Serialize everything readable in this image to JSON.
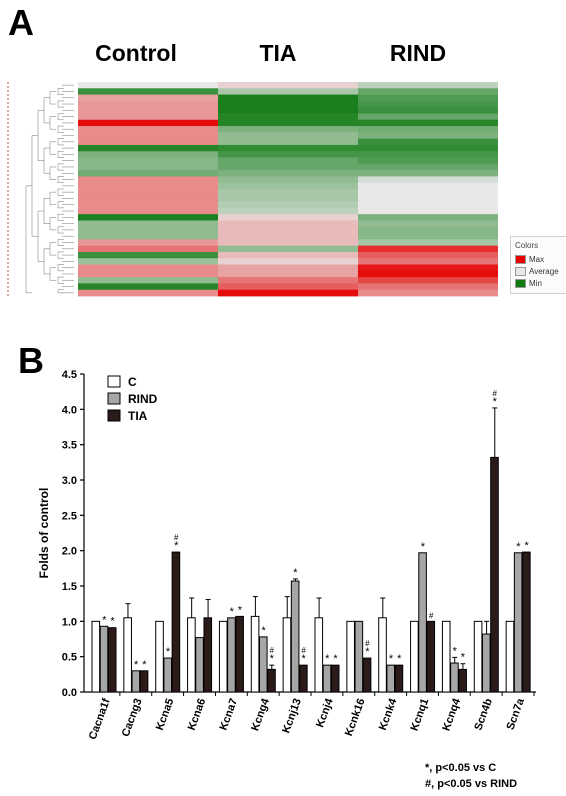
{
  "panels": {
    "a": "A",
    "b": "B"
  },
  "heatmap": {
    "groups": [
      "Control",
      "TIA",
      "RIND"
    ],
    "legend": {
      "title": "Colors",
      "items": [
        {
          "label": "Max",
          "color": "#e60000"
        },
        {
          "label": "Average",
          "color": "#e8e8e8"
        },
        {
          "label": "Min",
          "color": "#0f7a12"
        }
      ]
    }
  },
  "chart_data": [
    {
      "type": "heatmap",
      "columns": [
        "Control",
        "TIA",
        "RIND"
      ],
      "palette": {
        "max": "#e60000",
        "average": "#e8e8e8",
        "min": "#0f7a12"
      },
      "rows": [
        {
          "values": [
            0,
            0.1,
            -0.2
          ]
        },
        {
          "values": [
            -0.8,
            -0.3,
            -0.6
          ]
        },
        {
          "values": [
            0.3,
            -0.95,
            -0.7
          ]
        },
        {
          "values": [
            0.35,
            -0.95,
            -0.75
          ]
        },
        {
          "values": [
            0.35,
            -0.95,
            -0.8
          ]
        },
        {
          "values": [
            0.35,
            -0.9,
            -0.6
          ]
        },
        {
          "values": [
            0.95,
            -0.9,
            -0.9
          ]
        },
        {
          "values": [
            0.4,
            -0.5,
            -0.55
          ]
        },
        {
          "values": [
            0.4,
            -0.4,
            -0.5
          ]
        },
        {
          "values": [
            0.4,
            -0.4,
            -0.8
          ]
        },
        {
          "values": [
            -0.9,
            -0.85,
            -0.85
          ]
        },
        {
          "values": [
            -0.5,
            -0.75,
            -0.75
          ]
        },
        {
          "values": [
            -0.45,
            -0.6,
            -0.7
          ]
        },
        {
          "values": [
            -0.45,
            -0.6,
            -0.6
          ]
        },
        {
          "values": [
            -0.55,
            -0.5,
            -0.5
          ]
        },
        {
          "values": [
            0.4,
            -0.4,
            -0.1
          ]
        },
        {
          "values": [
            0.4,
            -0.35,
            0
          ]
        },
        {
          "values": [
            0.4,
            -0.3,
            0
          ]
        },
        {
          "values": [
            0.4,
            -0.3,
            0
          ]
        },
        {
          "values": [
            0.4,
            -0.25,
            0
          ]
        },
        {
          "values": [
            0.4,
            -0.2,
            0
          ]
        },
        {
          "values": [
            -0.95,
            0.1,
            -0.5
          ]
        },
        {
          "values": [
            -0.4,
            0.2,
            -0.4
          ]
        },
        {
          "values": [
            -0.4,
            0.2,
            -0.45
          ]
        },
        {
          "values": [
            -0.4,
            0.2,
            -0.45
          ]
        },
        {
          "values": [
            0.35,
            0.2,
            -0.3
          ]
        },
        {
          "values": [
            0.5,
            -0.4,
            0.8
          ]
        },
        {
          "values": [
            -0.8,
            0.2,
            0.6
          ]
        },
        {
          "values": [
            -0.35,
            0.1,
            0.5
          ]
        },
        {
          "values": [
            0.4,
            0.3,
            0.9
          ]
        },
        {
          "values": [
            0.4,
            0.3,
            0.95
          ]
        },
        {
          "values": [
            -0.4,
            0.5,
            0.7
          ]
        },
        {
          "values": [
            -0.9,
            0.6,
            0.5
          ]
        },
        {
          "values": [
            0.4,
            0.95,
            0.4
          ]
        }
      ],
      "legend": [
        "Max",
        "Average",
        "Min"
      ],
      "legend_position": "right"
    },
    {
      "type": "bar",
      "ylabel": "Folds of control",
      "ylim": [
        0,
        4.5
      ],
      "yticks": [
        "0.0",
        "0.5",
        "1.0",
        "1.5",
        "2.0",
        "2.5",
        "3.0",
        "3.5",
        "4.0",
        "4.5"
      ],
      "legend_position": "top-left",
      "categories": [
        "Cacna1f",
        "Cacng3",
        "Kcna5",
        "Kcna6",
        "Kcna7",
        "Kcng4",
        "Kcnj13",
        "Kcnj4",
        "Kcnk16",
        "Kcnk4",
        "Kcnq1",
        "Kcnq4",
        "Scn4b",
        "Scn7a"
      ],
      "series": [
        {
          "name": "C",
          "color": "#ffffff",
          "values": [
            1.0,
            1.05,
            1.0,
            1.05,
            1.0,
            1.07,
            1.05,
            1.05,
            1.0,
            1.05,
            1.0,
            1.0,
            1.0,
            1.0
          ],
          "errors": [
            0.02,
            0.2,
            0.01,
            0.28,
            0.02,
            0.28,
            0.3,
            0.28,
            0.02,
            0.28,
            0.01,
            0.01,
            0.02,
            0.01
          ],
          "marks": [
            "",
            "",
            "",
            "",
            "",
            "",
            "",
            "",
            "",
            "",
            "",
            "",
            "",
            ""
          ]
        },
        {
          "name": "RIND",
          "color": "#a6a6a6",
          "values": [
            0.93,
            0.3,
            0.48,
            0.77,
            1.05,
            0.78,
            1.57,
            0.38,
            1.0,
            0.38,
            1.97,
            0.41,
            0.82,
            1.97
          ],
          "errors": [
            0.02,
            0.02,
            0.02,
            0.02,
            0.02,
            0.02,
            0.03,
            0.02,
            0.02,
            0.02,
            0.02,
            0.08,
            0.18,
            0.02
          ],
          "marks": [
            "*",
            "*",
            "*",
            "",
            "*",
            "*",
            "*",
            "*",
            "",
            "*",
            "*",
            "*",
            "",
            "*"
          ]
        },
        {
          "name": "TIA",
          "color": "#2a1a1a",
          "values": [
            0.91,
            0.3,
            1.98,
            1.05,
            1.07,
            0.32,
            0.38,
            0.38,
            0.48,
            0.38,
            1.0,
            0.32,
            3.32,
            1.98
          ],
          "errors": [
            0.02,
            0.02,
            0.02,
            0.26,
            0.02,
            0.06,
            0.02,
            0.02,
            0.02,
            0.02,
            0.02,
            0.08,
            0.7,
            0.02
          ],
          "marks": [
            "*",
            "*",
            "#*",
            "",
            "*",
            "#*",
            "#*",
            "*",
            "#*",
            "*",
            "#",
            "*",
            "#*",
            "*"
          ]
        }
      ],
      "footnotes": [
        "*, p<0.05 vs C",
        "#, p<0.05 vs RIND"
      ]
    }
  ]
}
